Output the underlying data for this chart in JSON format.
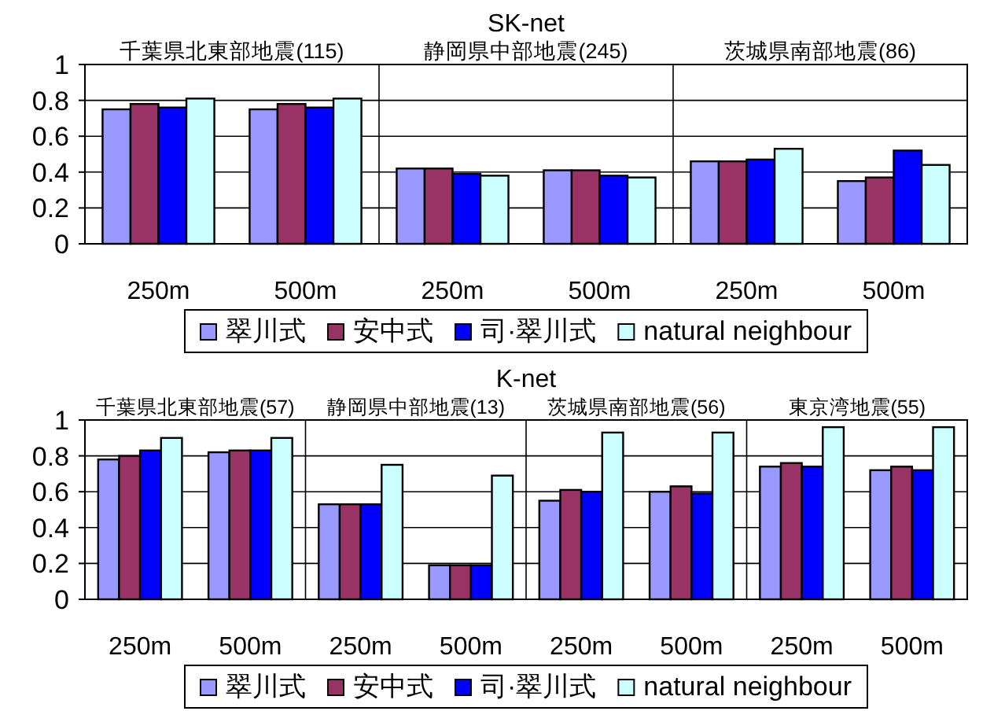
{
  "chart_data": [
    {
      "type": "bar",
      "title": "SK-net",
      "annotations": [
        "千葉県北東部地震(115)",
        "静岡県中部地震(245)",
        "茨城県南部地震(86)"
      ],
      "categories": [
        "250m",
        "500m",
        "250m",
        "500m",
        "250m",
        "500m"
      ],
      "series": [
        {
          "name": "翠川式",
          "color": "#9999ff",
          "values": [
            0.75,
            0.75,
            0.42,
            0.41,
            0.46,
            0.35
          ]
        },
        {
          "name": "安中式",
          "color": "#993366",
          "values": [
            0.78,
            0.78,
            0.42,
            0.41,
            0.46,
            0.37
          ]
        },
        {
          "name": "司·翠川式",
          "color": "#0000ff",
          "values": [
            0.76,
            0.76,
            0.39,
            0.38,
            0.47,
            0.52
          ]
        },
        {
          "name": "natural neighbour",
          "color": "#ccffff",
          "values": [
            0.81,
            0.81,
            0.38,
            0.37,
            0.53,
            0.44
          ]
        }
      ],
      "ylim": [
        0,
        1
      ],
      "yticks": [
        0,
        0.2,
        0.4,
        0.6,
        0.8,
        1
      ],
      "grid": "y",
      "legend": "bottom"
    },
    {
      "type": "bar",
      "title": "K-net",
      "annotations": [
        "千葉県北東部地震(57)",
        "静岡県中部地震(13)",
        "茨城県南部地震(56)",
        "東京湾地震(55)"
      ],
      "categories": [
        "250m",
        "500m",
        "250m",
        "500m",
        "250m",
        "500m",
        "250m",
        "500m"
      ],
      "series": [
        {
          "name": "翠川式",
          "color": "#9999ff",
          "values": [
            0.78,
            0.82,
            0.53,
            0.19,
            0.55,
            0.6,
            0.74,
            0.72
          ]
        },
        {
          "name": "安中式",
          "color": "#993366",
          "values": [
            0.8,
            0.83,
            0.53,
            0.19,
            0.61,
            0.63,
            0.76,
            0.74
          ]
        },
        {
          "name": "司·翠川式",
          "color": "#0000ff",
          "values": [
            0.83,
            0.83,
            0.53,
            0.19,
            0.6,
            0.59,
            0.74,
            0.72
          ]
        },
        {
          "name": "natural neighbour",
          "color": "#ccffff",
          "values": [
            0.9,
            0.9,
            0.75,
            0.69,
            0.93,
            0.93,
            0.96,
            0.96
          ]
        }
      ],
      "ylim": [
        0,
        1
      ],
      "yticks": [
        0,
        0.2,
        0.4,
        0.6,
        0.8,
        1
      ],
      "grid": "y",
      "legend": "bottom"
    }
  ]
}
